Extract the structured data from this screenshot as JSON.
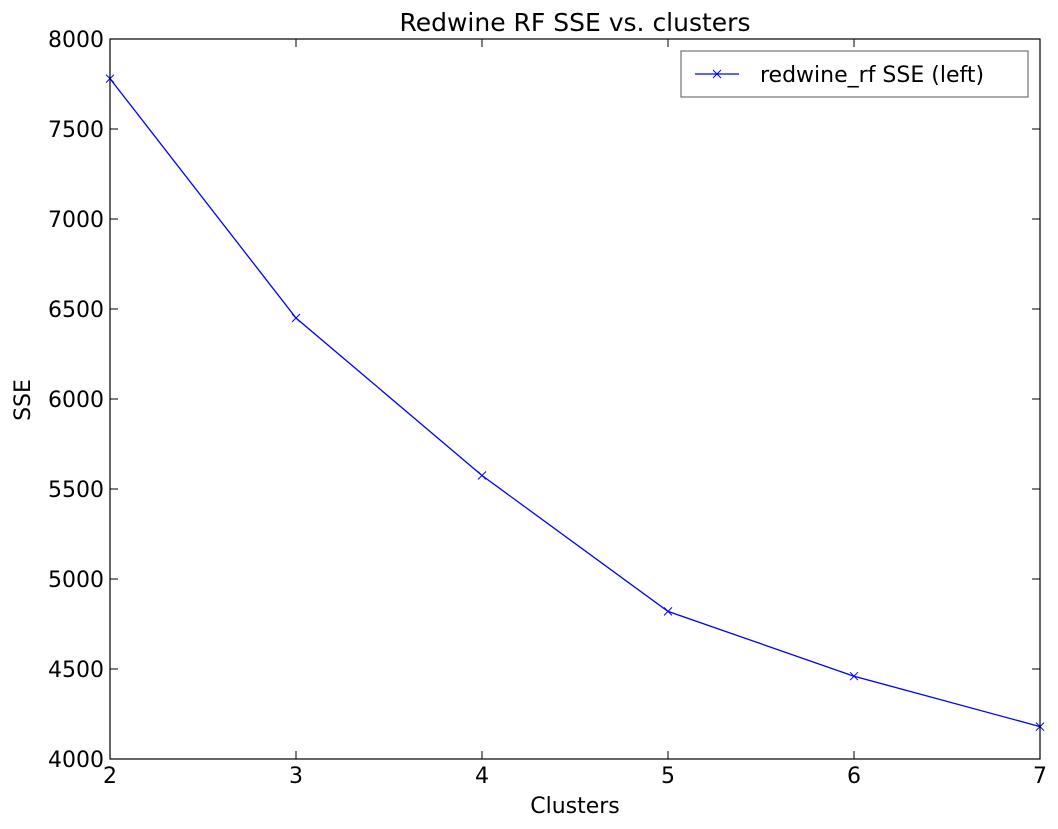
{
  "chart_data": {
    "type": "line",
    "title": "Redwine RF SSE vs. clusters",
    "xlabel": "Clusters",
    "ylabel": "SSE",
    "xlim": [
      2,
      7
    ],
    "ylim": [
      4000,
      8000
    ],
    "xticks": [
      "2",
      "3",
      "4",
      "5",
      "6",
      "7"
    ],
    "yticks": [
      "4000",
      "4500",
      "5000",
      "5500",
      "6000",
      "6500",
      "7000",
      "7500",
      "8000"
    ],
    "grid": false,
    "legend_position": "top-right",
    "series": [
      {
        "name": "redwine_rf SSE (left)",
        "color": "#0000ff",
        "marker": "x",
        "x": [
          2,
          3,
          4,
          5,
          6,
          7
        ],
        "y": [
          7780,
          6450,
          5575,
          4820,
          4460,
          4180
        ]
      }
    ]
  }
}
